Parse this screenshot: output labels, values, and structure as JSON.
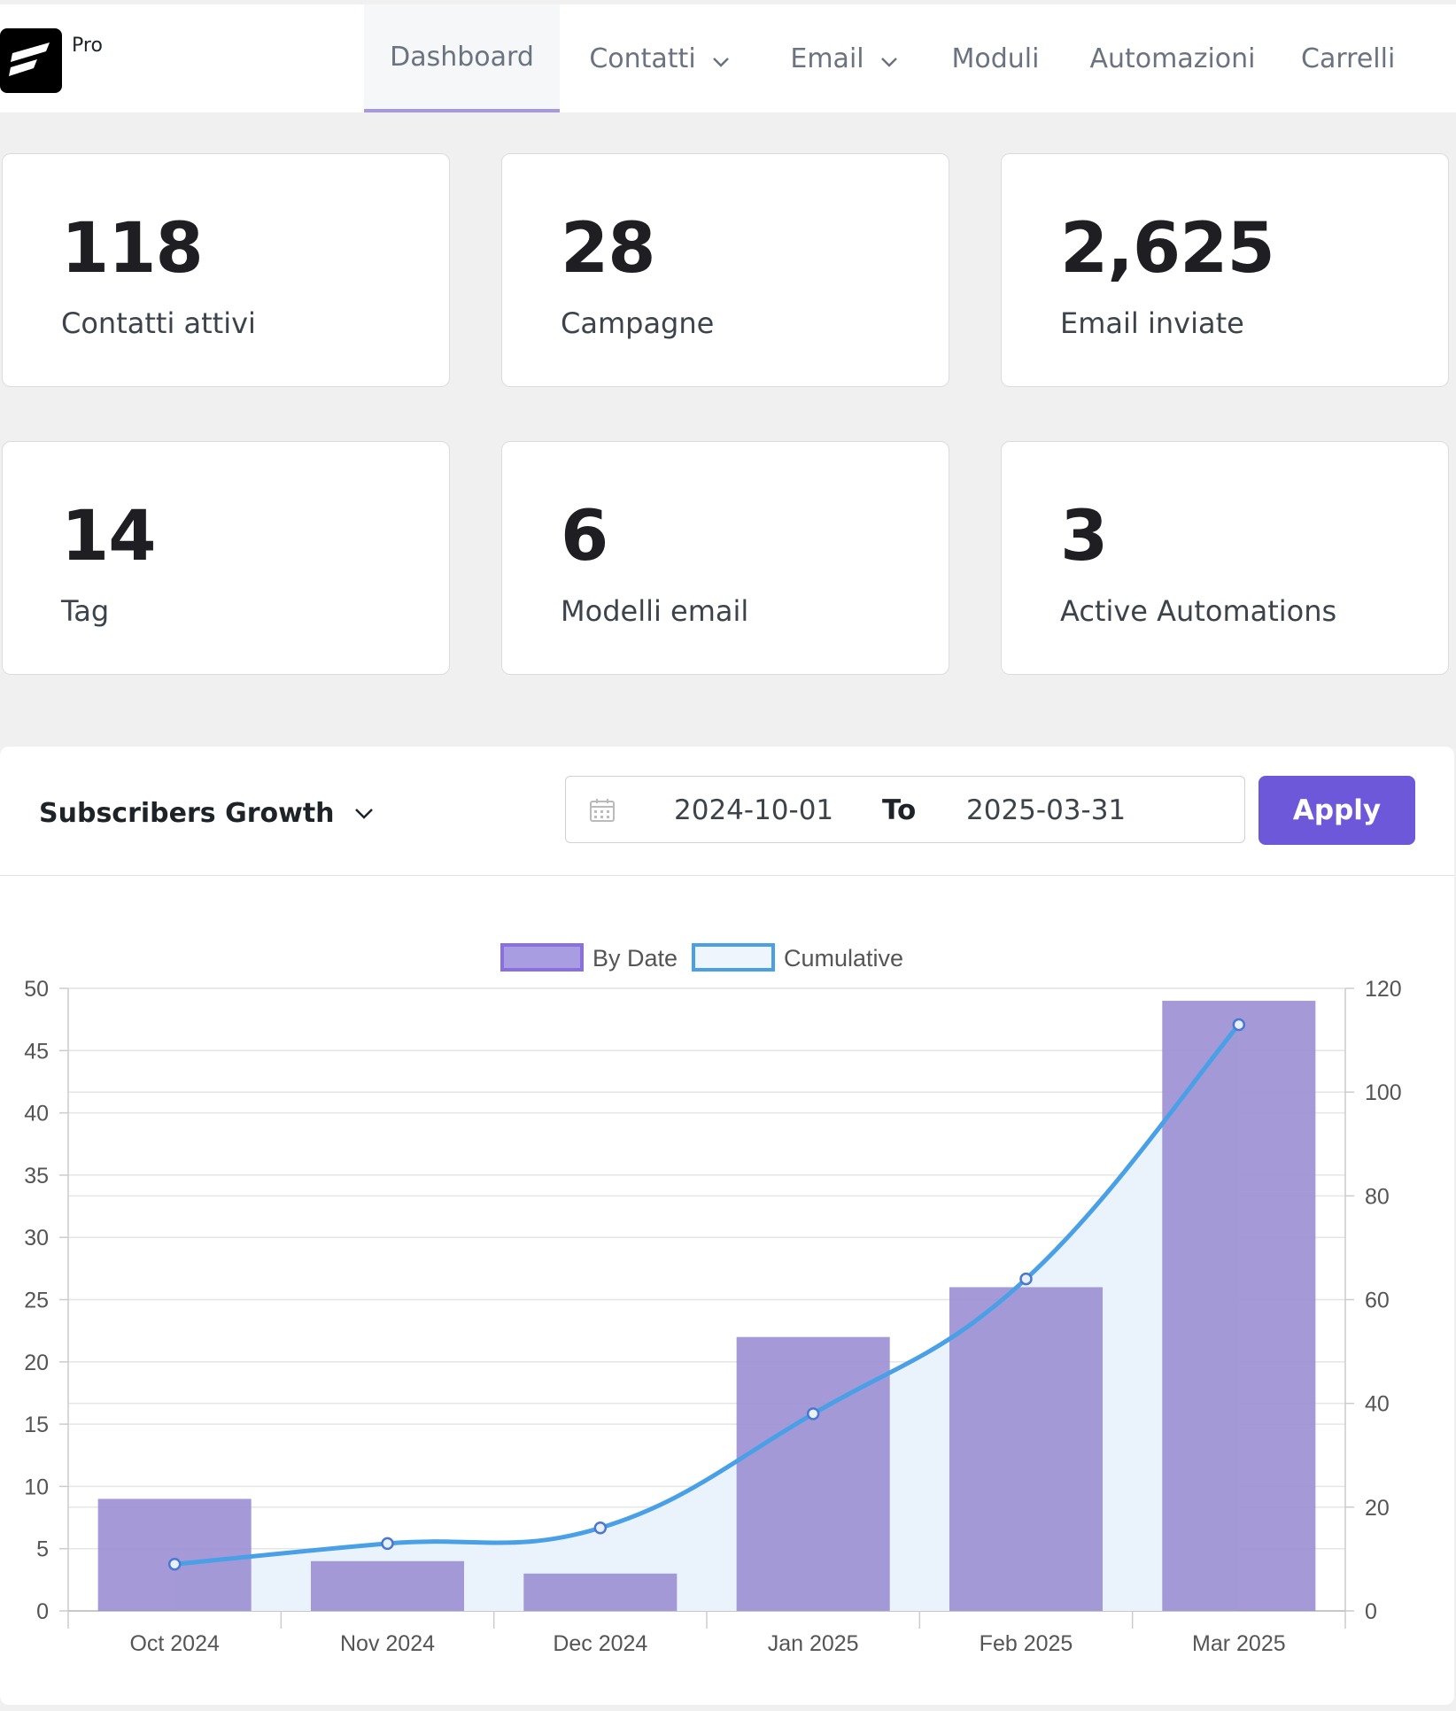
{
  "brand": {
    "logo_icon": "fluentcrm-logo-icon",
    "pro_label": "Pro"
  },
  "nav": {
    "items": [
      {
        "label": "Dashboard",
        "active": true,
        "dropdown": false
      },
      {
        "label": "Contatti",
        "active": false,
        "dropdown": true
      },
      {
        "label": "Email",
        "active": false,
        "dropdown": true
      },
      {
        "label": "Moduli",
        "active": false,
        "dropdown": false
      },
      {
        "label": "Automazioni",
        "active": false,
        "dropdown": false
      },
      {
        "label": "Carrelli",
        "active": false,
        "dropdown": false
      }
    ]
  },
  "stats": [
    {
      "value": "118",
      "label": "Contatti attivi"
    },
    {
      "value": "28",
      "label": "Campagne"
    },
    {
      "value": "2,625",
      "label": "Email inviate"
    },
    {
      "value": "14",
      "label": "Tag"
    },
    {
      "value": "6",
      "label": "Modelli email"
    },
    {
      "value": "3",
      "label": "Active Automations"
    }
  ],
  "report": {
    "selected": "Subscribers Growth",
    "date_from": "2024-10-01",
    "to_label": "To",
    "date_to": "2025-03-31",
    "apply_label": "Apply"
  },
  "colors": {
    "accent": "#6d58d9",
    "bar_fill": "#9b8fd3",
    "bar_border": "#8a6fe0",
    "line": "#4aa0e6",
    "line_area": "#eaf3fc"
  },
  "chart_data": {
    "type": "bar",
    "categories": [
      "Oct 2024",
      "Nov 2024",
      "Dec 2024",
      "Jan 2025",
      "Feb 2025",
      "Mar 2025"
    ],
    "series": [
      {
        "name": "By Date",
        "type": "bar",
        "axis": "left",
        "values": [
          9,
          4,
          3,
          22,
          26,
          49
        ]
      },
      {
        "name": "Cumulative",
        "type": "line",
        "axis": "right",
        "values": [
          9,
          13,
          16,
          38,
          64,
          113
        ]
      }
    ],
    "ylim_left": [
      0,
      50
    ],
    "yticks_left": [
      0,
      5,
      10,
      15,
      20,
      25,
      30,
      35,
      40,
      45,
      50
    ],
    "ylim_right": [
      0,
      120
    ],
    "yticks_right": [
      0,
      20,
      40,
      60,
      80,
      100,
      120
    ],
    "legend_position": "top-center",
    "grid": true
  }
}
